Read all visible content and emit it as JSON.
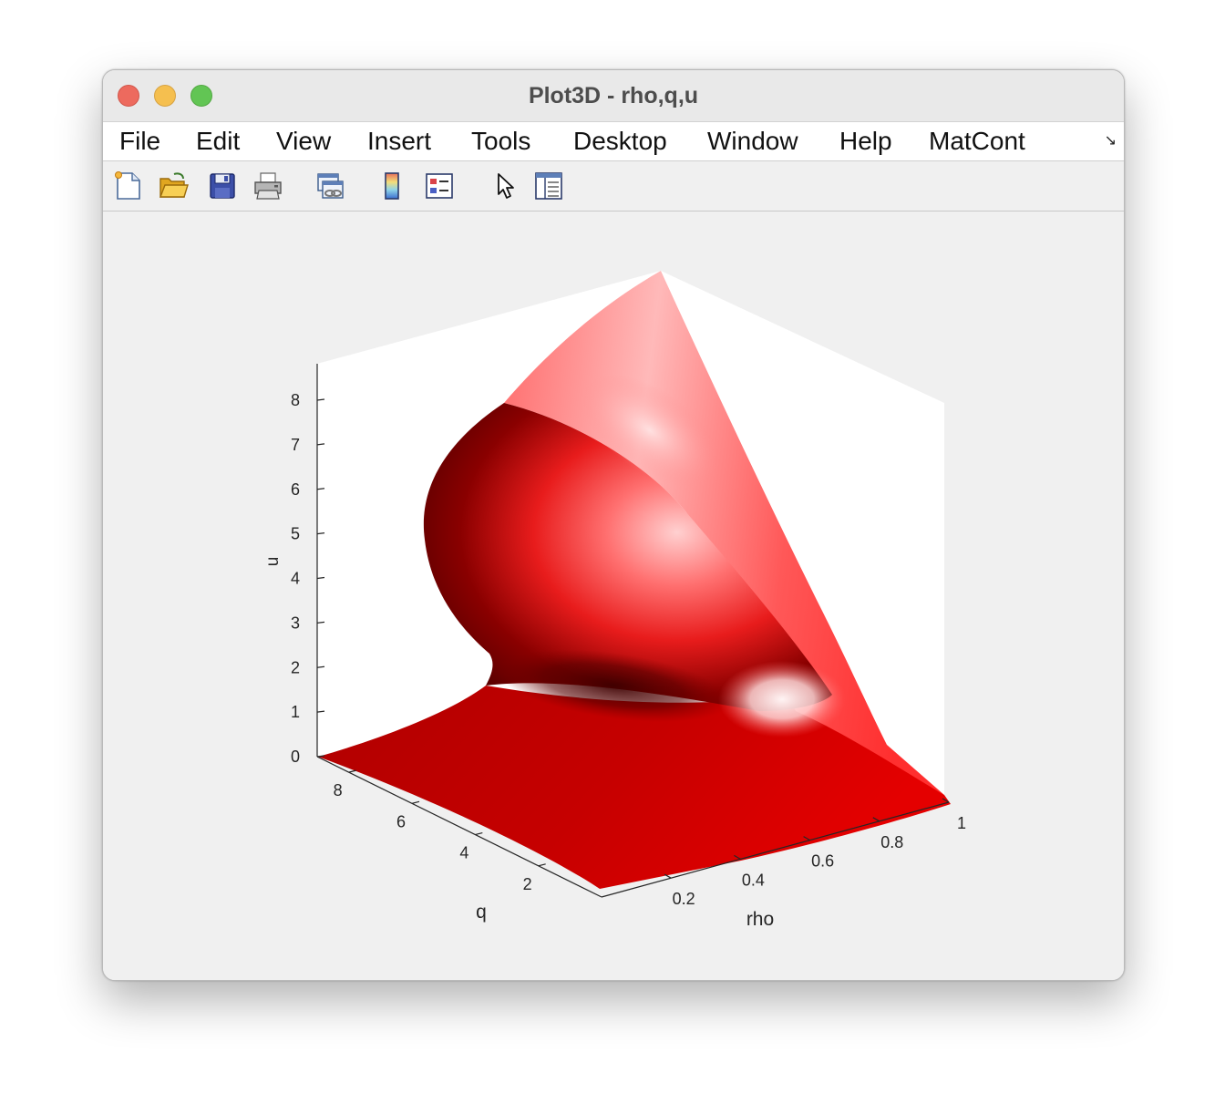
{
  "window": {
    "title": "Plot3D - rho,q,u"
  },
  "menubar": {
    "items": [
      {
        "label": "File"
      },
      {
        "label": "Edit"
      },
      {
        "label": "View"
      },
      {
        "label": "Insert"
      },
      {
        "label": "Tools"
      },
      {
        "label": "Desktop"
      },
      {
        "label": "Window"
      },
      {
        "label": "Help"
      },
      {
        "label": "MatCont"
      }
    ],
    "overflow_icon": "dock-arrow-icon"
  },
  "toolbar": {
    "buttons": [
      {
        "icon": "new-figure-icon"
      },
      {
        "icon": "open-file-icon"
      },
      {
        "icon": "save-icon"
      },
      {
        "icon": "print-icon"
      },
      {
        "icon": "link-plot-icon"
      },
      {
        "icon": "colorbar-icon"
      },
      {
        "icon": "legend-icon"
      },
      {
        "icon": "pointer-icon"
      },
      {
        "icon": "property-inspector-icon"
      }
    ]
  },
  "chart_data": {
    "type": "surface",
    "title": "",
    "xlabel": "rho",
    "ylabel": "q",
    "zlabel": "u",
    "x_ticks": [
      "0.2",
      "0.4",
      "0.6",
      "0.8",
      "1"
    ],
    "y_ticks": [
      "2",
      "4",
      "6",
      "8"
    ],
    "z_ticks": [
      "0",
      "1",
      "2",
      "3",
      "4",
      "5",
      "6",
      "7",
      "8"
    ],
    "xlim": [
      0,
      1
    ],
    "ylim": [
      0,
      9
    ],
    "zlim": [
      0,
      8.8
    ],
    "surface_color": "#e00000",
    "grid": false
  }
}
